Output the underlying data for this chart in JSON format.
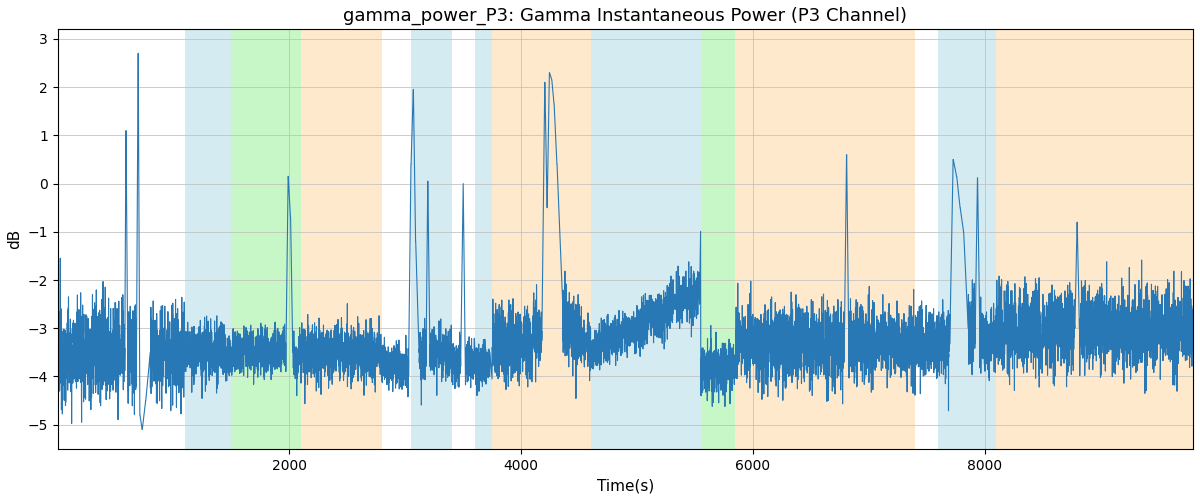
{
  "title": "gamma_power_P3: Gamma Instantaneous Power (P3 Channel)",
  "xlabel": "Time(s)",
  "ylabel": "dB",
  "ylim": [
    -5.5,
    3.2
  ],
  "xlim": [
    0,
    9800
  ],
  "yticks": [
    -5,
    -4,
    -3,
    -2,
    -1,
    0,
    1,
    2,
    3
  ],
  "xticks": [
    2000,
    4000,
    6000,
    8000
  ],
  "line_color": "#2878b5",
  "line_width": 0.8,
  "bg_regions": [
    {
      "xmin": 1100,
      "xmax": 1500,
      "color": "#add8e6",
      "alpha": 0.5
    },
    {
      "xmin": 1500,
      "xmax": 2100,
      "color": "#90ee90",
      "alpha": 0.5
    },
    {
      "xmin": 2100,
      "xmax": 2800,
      "color": "#ffd59b",
      "alpha": 0.5
    },
    {
      "xmin": 3050,
      "xmax": 3400,
      "color": "#add8e6",
      "alpha": 0.5
    },
    {
      "xmin": 3600,
      "xmax": 3750,
      "color": "#add8e6",
      "alpha": 0.5
    },
    {
      "xmin": 3750,
      "xmax": 4600,
      "color": "#ffd59b",
      "alpha": 0.5
    },
    {
      "xmin": 4600,
      "xmax": 5550,
      "color": "#add8e6",
      "alpha": 0.5
    },
    {
      "xmin": 5550,
      "xmax": 5850,
      "color": "#90ee90",
      "alpha": 0.5
    },
    {
      "xmin": 5850,
      "xmax": 7400,
      "color": "#ffd59b",
      "alpha": 0.5
    },
    {
      "xmin": 7600,
      "xmax": 8100,
      "color": "#add8e6",
      "alpha": 0.5
    },
    {
      "xmin": 8100,
      "xmax": 9800,
      "color": "#ffd59b",
      "alpha": 0.5
    }
  ]
}
